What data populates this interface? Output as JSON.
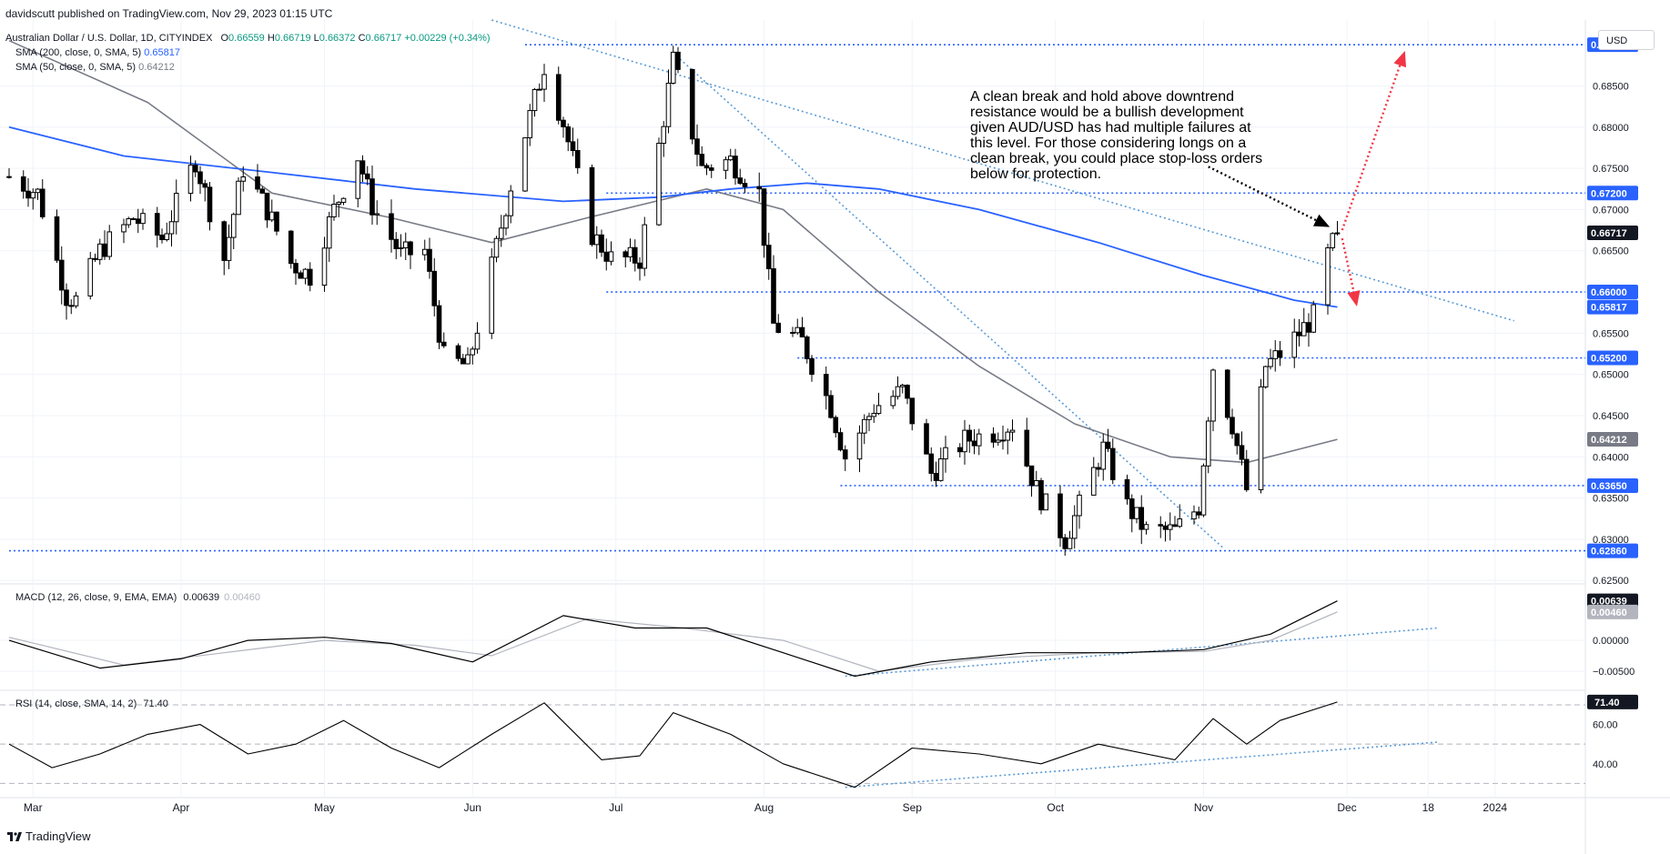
{
  "header": {
    "publisher": "davidscutt published on TradingView.com, Nov 29, 2023 01:15 UTC",
    "symbol": "Australian Dollar / U.S. Dollar, 1D, CITYINDEX",
    "open_label": "O",
    "open": "0.66559",
    "high_label": "H",
    "high": "0.66719",
    "low_label": "L",
    "low": "0.66372",
    "close_label": "C",
    "close": "0.66717",
    "change": "+0.00229 (+0.34%)",
    "sma200_label": "SMA (200, close, 0, SMA, 5)",
    "sma200_value": "0.65817",
    "sma50_label": "SMA (50, close, 0, SMA, 5)",
    "sma50_value": "0.64212",
    "currency": "USD"
  },
  "annotation": "A clean break and hold above downtrend resistance would be a bullish development given AUD/USD has had multiple failures at this level. For those considering longs on a clean break, you could place stop-loss orders below for protection.",
  "footer": {
    "brand": "TradingView"
  },
  "colors": {
    "up": "#089981",
    "candle": "#000000",
    "sma200": "#2962ff",
    "sma50": "#787b86",
    "level": "#2962ff",
    "trend": "#5b9bd5",
    "arrow_up": "#f23645",
    "arrow_down": "#f23645",
    "macd": "#000000",
    "signal": "#b2b5be",
    "rsi": "#000000"
  },
  "chart_data": [
    {
      "type": "candlestick",
      "panel": "price",
      "x_labels": [
        "Mar",
        "Apr",
        "May",
        "Jun",
        "Jul",
        "Aug",
        "Sep",
        "Oct",
        "Nov",
        "Dec",
        "18",
        "2024"
      ],
      "y_ticks": [
        "0.68500",
        "0.68000",
        "0.67500",
        "0.67000",
        "0.66500",
        "0.65500",
        "0.65000",
        "0.64500",
        "0.64000",
        "0.63500",
        "0.63000",
        "0.62500"
      ],
      "ylim": [
        0.6248,
        0.693
      ],
      "close_path": [
        {
          "d": "2023-02-24",
          "c": 0.674
        },
        {
          "d": "2023-03-02",
          "c": 0.672
        },
        {
          "d": "2023-03-08",
          "c": 0.6595
        },
        {
          "d": "2023-03-10",
          "c": 0.659
        },
        {
          "d": "2023-03-15",
          "c": 0.665
        },
        {
          "d": "2023-03-22",
          "c": 0.669
        },
        {
          "d": "2023-03-28",
          "c": 0.6665
        },
        {
          "d": "2023-04-04",
          "c": 0.676
        },
        {
          "d": "2023-04-10",
          "c": 0.664
        },
        {
          "d": "2023-04-14",
          "c": 0.675
        },
        {
          "d": "2023-04-19",
          "c": 0.67
        },
        {
          "d": "2023-04-24",
          "c": 0.6635
        },
        {
          "d": "2023-04-28",
          "c": 0.662
        },
        {
          "d": "2023-05-03",
          "c": 0.67
        },
        {
          "d": "2023-05-08",
          "c": 0.6765
        },
        {
          "d": "2023-05-11",
          "c": 0.6705
        },
        {
          "d": "2023-05-17",
          "c": 0.6645
        },
        {
          "d": "2023-05-22",
          "c": 0.665
        },
        {
          "d": "2023-05-26",
          "c": 0.652
        },
        {
          "d": "2023-05-31",
          "c": 0.651
        },
        {
          "d": "2023-06-05",
          "c": 0.663
        },
        {
          "d": "2023-06-09",
          "c": 0.673
        },
        {
          "d": "2023-06-16",
          "c": 0.6875
        },
        {
          "d": "2023-06-20",
          "c": 0.6805
        },
        {
          "d": "2023-06-26",
          "c": 0.667
        },
        {
          "d": "2023-06-30",
          "c": 0.664
        },
        {
          "d": "2023-07-06",
          "c": 0.664
        },
        {
          "d": "2023-07-13",
          "c": 0.688
        },
        {
          "d": "2023-07-19",
          "c": 0.675
        },
        {
          "d": "2023-07-25",
          "c": 0.676
        },
        {
          "d": "2023-07-31",
          "c": 0.672
        },
        {
          "d": "2023-08-03",
          "c": 0.656
        },
        {
          "d": "2023-08-09",
          "c": 0.654
        },
        {
          "d": "2023-08-15",
          "c": 0.646
        },
        {
          "d": "2023-08-18",
          "c": 0.64
        },
        {
          "d": "2023-08-24",
          "c": 0.646
        },
        {
          "d": "2023-08-30",
          "c": 0.648
        },
        {
          "d": "2023-09-05",
          "c": 0.638
        },
        {
          "d": "2023-09-12",
          "c": 0.642
        },
        {
          "d": "2023-09-18",
          "c": 0.643
        },
        {
          "d": "2023-09-22",
          "c": 0.644
        },
        {
          "d": "2023-09-27",
          "c": 0.636
        },
        {
          "d": "2023-10-03",
          "c": 0.63
        },
        {
          "d": "2023-10-06",
          "c": 0.634
        },
        {
          "d": "2023-10-11",
          "c": 0.641
        },
        {
          "d": "2023-10-16",
          "c": 0.634
        },
        {
          "d": "2023-10-20",
          "c": 0.631
        },
        {
          "d": "2023-10-26",
          "c": 0.631
        },
        {
          "d": "2023-10-31",
          "c": 0.634
        },
        {
          "d": "2023-11-03",
          "c": 0.651
        },
        {
          "d": "2023-11-07",
          "c": 0.644
        },
        {
          "d": "2023-11-10",
          "c": 0.636
        },
        {
          "d": "2023-11-14",
          "c": 0.651
        },
        {
          "d": "2023-11-17",
          "c": 0.6525
        },
        {
          "d": "2023-11-21",
          "c": 0.655
        },
        {
          "d": "2023-11-24",
          "c": 0.657
        },
        {
          "d": "2023-11-27",
          "c": 0.6645
        },
        {
          "d": "2023-11-29",
          "c": 0.66717
        }
      ],
      "sma200_path": [
        {
          "d": "2023-02-24",
          "v": 0.68
        },
        {
          "d": "2023-03-20",
          "v": 0.6765
        },
        {
          "d": "2023-04-20",
          "v": 0.6745
        },
        {
          "d": "2023-05-20",
          "v": 0.6725
        },
        {
          "d": "2023-06-20",
          "v": 0.671
        },
        {
          "d": "2023-07-10",
          "v": 0.6715
        },
        {
          "d": "2023-07-25",
          "v": 0.6725
        },
        {
          "d": "2023-08-10",
          "v": 0.6732
        },
        {
          "d": "2023-08-25",
          "v": 0.6725
        },
        {
          "d": "2023-09-15",
          "v": 0.67
        },
        {
          "d": "2023-10-10",
          "v": 0.666
        },
        {
          "d": "2023-11-01",
          "v": 0.662
        },
        {
          "d": "2023-11-20",
          "v": 0.659
        },
        {
          "d": "2023-11-29",
          "v": 0.65817
        }
      ],
      "sma50_path": [
        {
          "d": "2023-02-24",
          "v": 0.6905
        },
        {
          "d": "2023-03-25",
          "v": 0.683
        },
        {
          "d": "2023-04-20",
          "v": 0.672
        },
        {
          "d": "2023-05-15",
          "v": 0.669
        },
        {
          "d": "2023-06-05",
          "v": 0.666
        },
        {
          "d": "2023-06-25",
          "v": 0.669
        },
        {
          "d": "2023-07-20",
          "v": 0.6725
        },
        {
          "d": "2023-08-05",
          "v": 0.67
        },
        {
          "d": "2023-08-25",
          "v": 0.66
        },
        {
          "d": "2023-09-15",
          "v": 0.651
        },
        {
          "d": "2023-10-05",
          "v": 0.644
        },
        {
          "d": "2023-10-25",
          "v": 0.64
        },
        {
          "d": "2023-11-10",
          "v": 0.6393
        },
        {
          "d": "2023-11-29",
          "v": 0.64212
        }
      ],
      "levels": [
        {
          "label": "0.69000",
          "value": 0.69,
          "from": "2023-06-12"
        },
        {
          "label": "0.67200",
          "value": 0.672,
          "from": "2023-06-29"
        },
        {
          "label": "0.66000",
          "value": 0.66,
          "from": "2023-06-29"
        },
        {
          "label": "0.65200",
          "value": 0.652,
          "from": "2023-08-08"
        },
        {
          "label": "0.63650",
          "value": 0.6365,
          "from": "2023-08-17"
        },
        {
          "label": "0.62860",
          "value": 0.6286,
          "from": "2023-02-24"
        }
      ],
      "price_badges": [
        {
          "label": "0.66717",
          "value": 0.66717,
          "style": "dark"
        },
        {
          "label": "0.65817",
          "value": 0.65817,
          "style": "sma200"
        },
        {
          "label": "0.64212",
          "value": 0.64212,
          "style": "sma50"
        }
      ],
      "trendlines": [
        {
          "from": {
            "d": "2023-06-05",
            "v": 0.693
          },
          "to": {
            "d": "2024-01-05",
            "v": 0.6565
          }
        },
        {
          "from": {
            "d": "2023-07-13",
            "v": 0.689
          },
          "to": {
            "d": "2023-11-05",
            "v": 0.629
          }
        }
      ],
      "arrows": [
        {
          "kind": "black",
          "from": {
            "d": "2023-11-02",
            "v": 0.6752
          },
          "to": {
            "d": "2023-11-27",
            "v": 0.668
          }
        },
        {
          "kind": "red-up",
          "from": {
            "d": "2023-11-30",
            "v": 0.6675
          },
          "to": {
            "d": "2023-12-13",
            "v": 0.689
          }
        },
        {
          "kind": "red-down",
          "from": {
            "d": "2023-11-30",
            "v": 0.6665
          },
          "to": {
            "d": "2023-12-03",
            "v": 0.6585
          }
        }
      ]
    },
    {
      "type": "line",
      "panel": "macd",
      "title": "MACD (12, 26, close, 9, EMA, EMA)",
      "macd_value": "0.00639",
      "signal_value": "0.00460",
      "y_ticks": [
        "0.00000",
        "−0.00500"
      ],
      "ylim": [
        -0.0075,
        0.0087
      ],
      "series": [
        {
          "name": "MACD",
          "points": [
            {
              "d": "2023-02-24",
              "v": 0.0
            },
            {
              "d": "2023-03-15",
              "v": -0.0045
            },
            {
              "d": "2023-04-01",
              "v": -0.003
            },
            {
              "d": "2023-04-15",
              "v": 0.0
            },
            {
              "d": "2023-05-01",
              "v": 0.0005
            },
            {
              "d": "2023-05-15",
              "v": -0.0005
            },
            {
              "d": "2023-06-01",
              "v": -0.0035
            },
            {
              "d": "2023-06-20",
              "v": 0.004
            },
            {
              "d": "2023-07-05",
              "v": 0.002
            },
            {
              "d": "2023-07-20",
              "v": 0.002
            },
            {
              "d": "2023-08-05",
              "v": -0.002
            },
            {
              "d": "2023-08-20",
              "v": -0.0058
            },
            {
              "d": "2023-09-05",
              "v": -0.0035
            },
            {
              "d": "2023-09-25",
              "v": -0.002
            },
            {
              "d": "2023-10-15",
              "v": -0.002
            },
            {
              "d": "2023-11-01",
              "v": -0.0015
            },
            {
              "d": "2023-11-15",
              "v": 0.001
            },
            {
              "d": "2023-11-29",
              "v": 0.00639
            }
          ]
        },
        {
          "name": "Signal",
          "points": [
            {
              "d": "2023-02-24",
              "v": 0.0005
            },
            {
              "d": "2023-03-20",
              "v": -0.004
            },
            {
              "d": "2023-04-10",
              "v": -0.002
            },
            {
              "d": "2023-05-01",
              "v": 0.0
            },
            {
              "d": "2023-05-20",
              "v": -0.0008
            },
            {
              "d": "2023-06-05",
              "v": -0.0025
            },
            {
              "d": "2023-06-25",
              "v": 0.0035
            },
            {
              "d": "2023-07-15",
              "v": 0.002
            },
            {
              "d": "2023-08-05",
              "v": 0.0
            },
            {
              "d": "2023-08-25",
              "v": -0.005
            },
            {
              "d": "2023-09-15",
              "v": -0.003
            },
            {
              "d": "2023-10-10",
              "v": -0.002
            },
            {
              "d": "2023-11-01",
              "v": -0.0018
            },
            {
              "d": "2023-11-15",
              "v": 0.0
            },
            {
              "d": "2023-11-29",
              "v": 0.0046
            }
          ]
        }
      ],
      "trendline": {
        "from": {
          "d": "2023-08-18",
          "v": -0.0058
        },
        "to": {
          "d": "2023-12-20",
          "v": 0.002
        }
      }
    },
    {
      "type": "line",
      "panel": "rsi",
      "title": "RSI (14, close, SMA, 14, 2)",
      "rsi_value": "71.40",
      "y_ticks": [
        "60.00",
        "40.00"
      ],
      "bands": [
        70,
        50,
        30
      ],
      "ylim": [
        26,
        76
      ],
      "series": [
        {
          "name": "RSI",
          "points": [
            {
              "d": "2023-02-24",
              "v": 50
            },
            {
              "d": "2023-03-05",
              "v": 38
            },
            {
              "d": "2023-03-15",
              "v": 45
            },
            {
              "d": "2023-03-25",
              "v": 55
            },
            {
              "d": "2023-04-05",
              "v": 60
            },
            {
              "d": "2023-04-15",
              "v": 45
            },
            {
              "d": "2023-04-25",
              "v": 50
            },
            {
              "d": "2023-05-05",
              "v": 62
            },
            {
              "d": "2023-05-15",
              "v": 48
            },
            {
              "d": "2023-05-25",
              "v": 38
            },
            {
              "d": "2023-06-05",
              "v": 55
            },
            {
              "d": "2023-06-16",
              "v": 71
            },
            {
              "d": "2023-06-28",
              "v": 42
            },
            {
              "d": "2023-07-06",
              "v": 44
            },
            {
              "d": "2023-07-13",
              "v": 66
            },
            {
              "d": "2023-07-25",
              "v": 55
            },
            {
              "d": "2023-08-05",
              "v": 40
            },
            {
              "d": "2023-08-20",
              "v": 28
            },
            {
              "d": "2023-09-01",
              "v": 48
            },
            {
              "d": "2023-09-15",
              "v": 45
            },
            {
              "d": "2023-09-28",
              "v": 40
            },
            {
              "d": "2023-10-10",
              "v": 50
            },
            {
              "d": "2023-10-26",
              "v": 42
            },
            {
              "d": "2023-11-03",
              "v": 63
            },
            {
              "d": "2023-11-10",
              "v": 50
            },
            {
              "d": "2023-11-17",
              "v": 62
            },
            {
              "d": "2023-11-29",
              "v": 71.4
            }
          ]
        }
      ],
      "trendline": {
        "from": {
          "d": "2023-08-18",
          "v": 28
        },
        "to": {
          "d": "2023-12-20",
          "v": 51
        }
      }
    }
  ]
}
